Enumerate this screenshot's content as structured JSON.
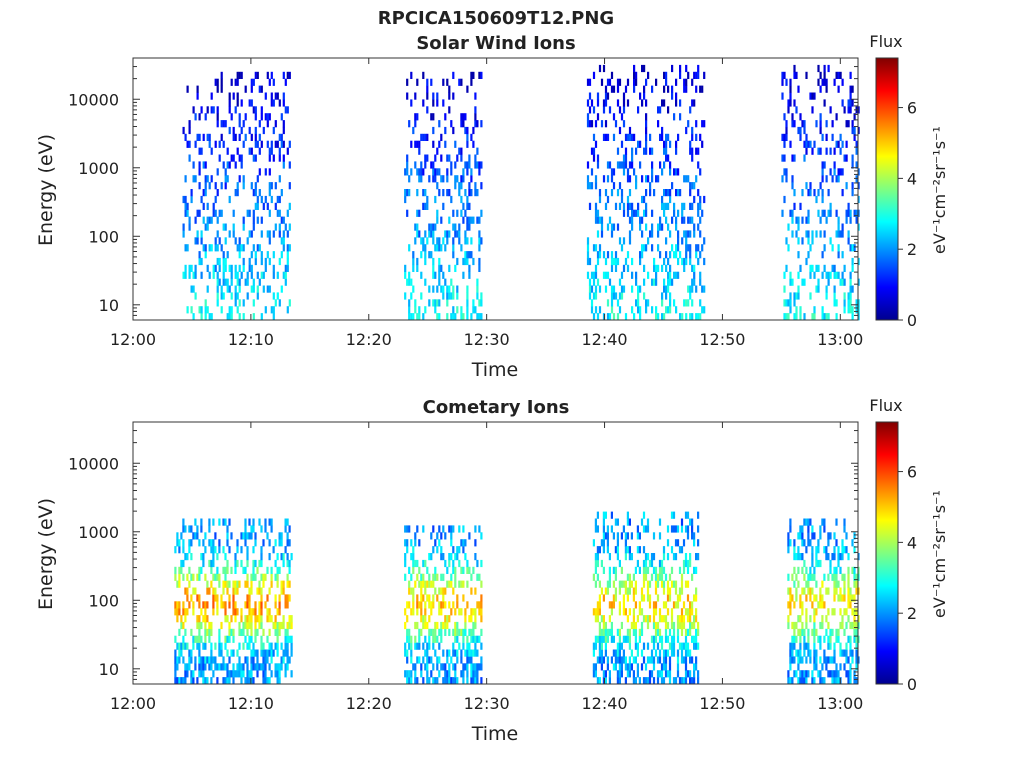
{
  "figure": {
    "filename_title": "RPCICA150609T12.PNG"
  },
  "chart_data": [
    {
      "type": "heatmap",
      "title": "Solar Wind Ions",
      "xlabel": "Time",
      "ylabel": "Energy (eV)",
      "x_ticks": [
        "12:00",
        "12:10",
        "12:20",
        "12:30",
        "12:40",
        "12:50",
        "13:00"
      ],
      "x_range_minutes_after_1200": [
        0,
        61.5
      ],
      "y_scale": "log",
      "y_range_eV": [
        6,
        40000
      ],
      "y_ticks": [
        {
          "value": 10,
          "label": "10"
        },
        {
          "value": 100,
          "label": "100"
        },
        {
          "value": 1000,
          "label": "1000"
        },
        {
          "value": 10000,
          "label": "10000"
        }
      ],
      "colorbar": {
        "title": "Flux",
        "label": "eV⁻¹cm⁻²sr⁻¹s⁻¹",
        "range": [
          0,
          7.4
        ],
        "ticks": [
          {
            "value": 0,
            "label": "0"
          },
          {
            "value": 2,
            "label": "2"
          },
          {
            "value": 4,
            "label": "4"
          },
          {
            "value": 6,
            "label": "6"
          }
        ]
      },
      "grid": false,
      "activity_bursts": [
        {
          "t_start_min": 4.2,
          "t_end_min": 13.3,
          "e_min_eV": 6,
          "e_max_eV": 22000,
          "flux_range": [
            0.5,
            2.8
          ]
        },
        {
          "t_start_min": 23.0,
          "t_end_min": 29.5,
          "e_min_eV": 6,
          "e_max_eV": 25000,
          "flux_range": [
            0.5,
            2.8
          ]
        },
        {
          "t_start_min": 38.5,
          "t_end_min": 48.5,
          "e_min_eV": 6,
          "e_max_eV": 30000,
          "flux_range": [
            0.5,
            2.8
          ]
        },
        {
          "t_start_min": 55.0,
          "t_end_min": 61.5,
          "e_min_eV": 6,
          "e_max_eV": 28000,
          "flux_range": [
            0.5,
            2.8
          ]
        }
      ]
    },
    {
      "type": "heatmap",
      "title": "Cometary Ions",
      "xlabel": "Time",
      "ylabel": "Energy (eV)",
      "x_ticks": [
        "12:00",
        "12:10",
        "12:20",
        "12:30",
        "12:40",
        "12:50",
        "13:00"
      ],
      "x_range_minutes_after_1200": [
        0,
        61.5
      ],
      "y_scale": "log",
      "y_range_eV": [
        6,
        40000
      ],
      "y_ticks": [
        {
          "value": 10,
          "label": "10"
        },
        {
          "value": 100,
          "label": "100"
        },
        {
          "value": 1000,
          "label": "1000"
        },
        {
          "value": 10000,
          "label": "10000"
        }
      ],
      "colorbar": {
        "title": "Flux",
        "label": "eV⁻¹cm⁻²sr⁻¹s⁻¹",
        "range": [
          0,
          7.4
        ],
        "ticks": [
          {
            "value": 0,
            "label": "0"
          },
          {
            "value": 2,
            "label": "2"
          },
          {
            "value": 4,
            "label": "4"
          },
          {
            "value": 6,
            "label": "6"
          }
        ]
      },
      "grid": false,
      "activity_bursts": [
        {
          "t_start_min": 3.5,
          "t_end_min": 13.5,
          "e_min_eV": 6,
          "e_max_eV": 1500,
          "flux_range": [
            2.0,
            5.3
          ]
        },
        {
          "t_start_min": 23.0,
          "t_end_min": 29.5,
          "e_min_eV": 6,
          "e_max_eV": 1200,
          "flux_range": [
            2.0,
            5.0
          ]
        },
        {
          "t_start_min": 39.0,
          "t_end_min": 48.0,
          "e_min_eV": 6,
          "e_max_eV": 1600,
          "flux_range": [
            2.0,
            4.8
          ]
        },
        {
          "t_start_min": 55.5,
          "t_end_min": 61.5,
          "e_min_eV": 6,
          "e_max_eV": 1400,
          "flux_range": [
            2.0,
            4.7
          ]
        }
      ]
    }
  ]
}
